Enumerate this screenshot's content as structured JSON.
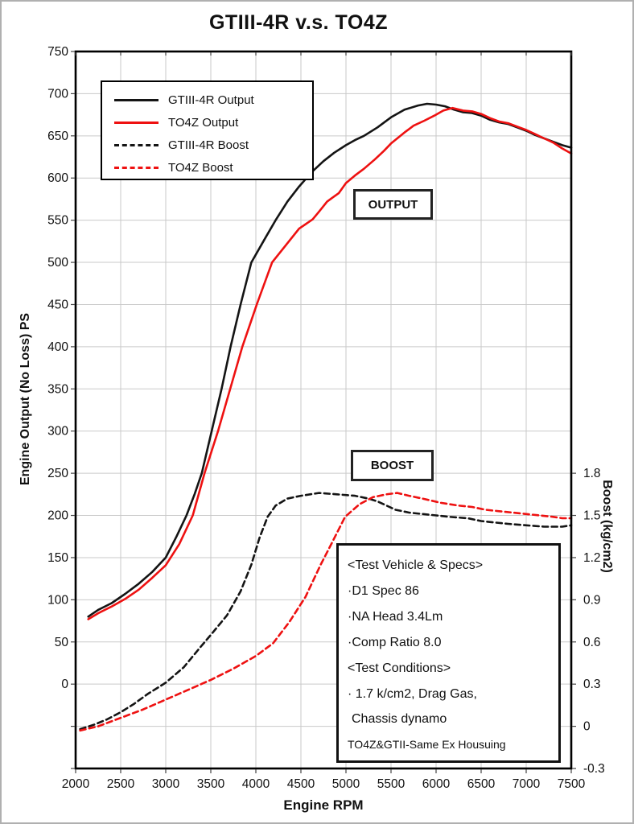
{
  "colors": {
    "series_black": "#141414",
    "series_red": "#ee1111",
    "grid": "#c9c9c9",
    "axis_frame": "#000000",
    "tick": "#444444",
    "text": "#111111"
  },
  "annotations": {
    "output_label": "OUTPUT",
    "boost_label": "BOOST"
  },
  "specs_box": {
    "lines": [
      "<Test Vehicle & Specs>",
      "·D1 Spec 86",
      "·NA Head 3.4Lm",
      "·Comp Ratio 8.0",
      "<Test Conditions>",
      "· 1.7 k/cm2, Drag Gas,",
      "Chassis dynamo",
      "TO4Z&GTII-Same Ex Housuing"
    ]
  },
  "chart_data": {
    "type": "line",
    "title": "GTIII-4R v.s. TO4Z",
    "xlabel": "Engine RPM",
    "ylabel_left": "Engine Output (No Loss) PS",
    "ylabel_right": "Boost (kg/cm2)",
    "x_range": [
      2000,
      7500
    ],
    "x_ticks": [
      2000,
      2500,
      3000,
      3500,
      4000,
      4500,
      5000,
      5500,
      6000,
      6500,
      7000,
      7500
    ],
    "y_left_range": [
      -100,
      750
    ],
    "y_left_tick_step": 50,
    "y_left_labeled_ticks": [
      0,
      50,
      100,
      150,
      200,
      250,
      300,
      350,
      400,
      450,
      500,
      550,
      600,
      650,
      700,
      750
    ],
    "y_right_ticks": [
      {
        "v": 1.8,
        "label": "1.8"
      },
      {
        "v": 1.5,
        "label": "1.5"
      },
      {
        "v": 1.2,
        "label": "1.2"
      },
      {
        "v": 0.9,
        "label": "0.9"
      },
      {
        "v": 0.6,
        "label": "0.6"
      },
      {
        "v": 0.3,
        "label": "0.3"
      },
      {
        "v": 0.0,
        "label": "0"
      },
      {
        "v": -0.3,
        "label": "-0.3"
      }
    ],
    "boost_to_ps": {
      "offset": -50,
      "scale": 166.667
    },
    "grid": true,
    "legend_position": "top-left",
    "series": [
      {
        "name": "GTIII-4R Output",
        "color": "#141414",
        "dash": "solid",
        "axis": "left",
        "points": [
          [
            2140,
            80
          ],
          [
            2250,
            88
          ],
          [
            2400,
            96
          ],
          [
            2550,
            107
          ],
          [
            2700,
            119
          ],
          [
            2850,
            133
          ],
          [
            3000,
            150
          ],
          [
            3120,
            175
          ],
          [
            3230,
            200
          ],
          [
            3320,
            225
          ],
          [
            3400,
            250
          ],
          [
            3510,
            300
          ],
          [
            3620,
            350
          ],
          [
            3720,
            400
          ],
          [
            3830,
            450
          ],
          [
            3950,
            500
          ],
          [
            4100,
            528
          ],
          [
            4220,
            550
          ],
          [
            4350,
            572
          ],
          [
            4480,
            590
          ],
          [
            4630,
            608
          ],
          [
            4750,
            620
          ],
          [
            4870,
            630
          ],
          [
            5000,
            639
          ],
          [
            5100,
            645
          ],
          [
            5200,
            650
          ],
          [
            5350,
            660
          ],
          [
            5500,
            672
          ],
          [
            5650,
            681
          ],
          [
            5800,
            686
          ],
          [
            5900,
            688
          ],
          [
            6000,
            687
          ],
          [
            6100,
            685
          ],
          [
            6200,
            681
          ],
          [
            6300,
            678
          ],
          [
            6400,
            677
          ],
          [
            6500,
            674
          ],
          [
            6600,
            669
          ],
          [
            6700,
            666
          ],
          [
            6800,
            664
          ],
          [
            6900,
            660
          ],
          [
            7000,
            656
          ],
          [
            7100,
            651
          ],
          [
            7200,
            647
          ],
          [
            7300,
            643
          ],
          [
            7400,
            639
          ],
          [
            7500,
            636
          ]
        ]
      },
      {
        "name": "TO4Z Output",
        "color": "#ee1111",
        "dash": "solid",
        "axis": "left",
        "points": [
          [
            2140,
            77
          ],
          [
            2250,
            84
          ],
          [
            2400,
            92
          ],
          [
            2550,
            101
          ],
          [
            2700,
            112
          ],
          [
            2850,
            126
          ],
          [
            3000,
            141
          ],
          [
            3150,
            166
          ],
          [
            3300,
            200
          ],
          [
            3430,
            250
          ],
          [
            3580,
            300
          ],
          [
            3715,
            350
          ],
          [
            3850,
            400
          ],
          [
            4010,
            450
          ],
          [
            4180,
            500
          ],
          [
            4330,
            520
          ],
          [
            4480,
            540
          ],
          [
            4630,
            551
          ],
          [
            4700,
            560
          ],
          [
            4790,
            572
          ],
          [
            4840,
            576
          ],
          [
            4920,
            582
          ],
          [
            5000,
            594
          ],
          [
            5100,
            603
          ],
          [
            5200,
            611
          ],
          [
            5320,
            622
          ],
          [
            5420,
            632
          ],
          [
            5500,
            641
          ],
          [
            5650,
            654
          ],
          [
            5750,
            662
          ],
          [
            5870,
            668
          ],
          [
            5980,
            674
          ],
          [
            6080,
            680
          ],
          [
            6180,
            683
          ],
          [
            6300,
            680
          ],
          [
            6400,
            679
          ],
          [
            6500,
            676
          ],
          [
            6600,
            671
          ],
          [
            6700,
            667
          ],
          [
            6800,
            665
          ],
          [
            6900,
            661
          ],
          [
            7000,
            657
          ],
          [
            7100,
            652
          ],
          [
            7200,
            647
          ],
          [
            7300,
            642
          ],
          [
            7400,
            635
          ],
          [
            7500,
            629
          ]
        ]
      },
      {
        "name": "GTIII-4R Boost",
        "color": "#141414",
        "dash": "dashed",
        "axis": "right",
        "points": [
          [
            2050,
            -0.02
          ],
          [
            2200,
            0.01
          ],
          [
            2350,
            0.05
          ],
          [
            2500,
            0.1
          ],
          [
            2650,
            0.16
          ],
          [
            2800,
            0.23
          ],
          [
            3000,
            0.31
          ],
          [
            3200,
            0.42
          ],
          [
            3380,
            0.56
          ],
          [
            3500,
            0.65
          ],
          [
            3680,
            0.79
          ],
          [
            3830,
            0.96
          ],
          [
            3950,
            1.15
          ],
          [
            4040,
            1.34
          ],
          [
            4130,
            1.49
          ],
          [
            4220,
            1.57
          ],
          [
            4350,
            1.62
          ],
          [
            4500,
            1.64
          ],
          [
            4700,
            1.66
          ],
          [
            4900,
            1.65
          ],
          [
            5100,
            1.64
          ],
          [
            5250,
            1.62
          ],
          [
            5350,
            1.6
          ],
          [
            5450,
            1.57
          ],
          [
            5550,
            1.54
          ],
          [
            5700,
            1.52
          ],
          [
            5850,
            1.51
          ],
          [
            6000,
            1.5
          ],
          [
            6150,
            1.49
          ],
          [
            6350,
            1.48
          ],
          [
            6500,
            1.46
          ],
          [
            6650,
            1.45
          ],
          [
            6800,
            1.44
          ],
          [
            7000,
            1.43
          ],
          [
            7200,
            1.42
          ],
          [
            7400,
            1.42
          ],
          [
            7500,
            1.43
          ]
        ]
      },
      {
        "name": "TO4Z Boost",
        "color": "#ee1111",
        "dash": "dashed",
        "axis": "right",
        "points": [
          [
            2050,
            -0.03
          ],
          [
            2250,
            0.0
          ],
          [
            2500,
            0.06
          ],
          [
            2750,
            0.12
          ],
          [
            3000,
            0.19
          ],
          [
            3250,
            0.26
          ],
          [
            3500,
            0.33
          ],
          [
            3750,
            0.41
          ],
          [
            4000,
            0.5
          ],
          [
            4190,
            0.59
          ],
          [
            4370,
            0.74
          ],
          [
            4550,
            0.92
          ],
          [
            4720,
            1.15
          ],
          [
            4840,
            1.3
          ],
          [
            4990,
            1.49
          ],
          [
            5150,
            1.58
          ],
          [
            5300,
            1.63
          ],
          [
            5450,
            1.65
          ],
          [
            5570,
            1.66
          ],
          [
            5700,
            1.64
          ],
          [
            5850,
            1.62
          ],
          [
            6050,
            1.59
          ],
          [
            6250,
            1.57
          ],
          [
            6400,
            1.56
          ],
          [
            6550,
            1.54
          ],
          [
            6700,
            1.53
          ],
          [
            6850,
            1.52
          ],
          [
            7000,
            1.51
          ],
          [
            7150,
            1.5
          ],
          [
            7300,
            1.49
          ],
          [
            7400,
            1.48
          ],
          [
            7500,
            1.48
          ]
        ]
      }
    ]
  }
}
